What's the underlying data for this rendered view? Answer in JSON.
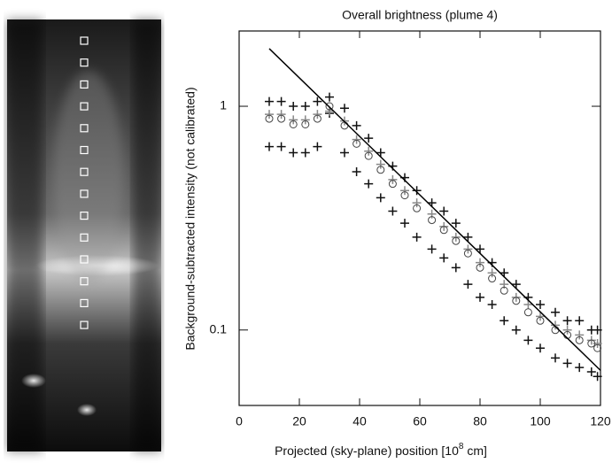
{
  "chart_data": {
    "type": "scatter",
    "title": "Overall brightness (plume 4)",
    "xlabel": [
      "Projected (sky-plane) position [10",
      "8",
      " cm]"
    ],
    "ylabel": "Background-subtracted intensity (not calibrated)",
    "xlim": [
      0,
      120
    ],
    "xticks": [
      0,
      20,
      40,
      60,
      80,
      100,
      120
    ],
    "ylim": [
      0.046,
      2.17
    ],
    "yscale": "log",
    "yticks": [
      1,
      0.1
    ],
    "x": [
      10,
      14,
      18,
      22,
      26,
      30,
      35,
      39,
      43,
      47,
      51,
      55,
      59,
      64,
      68,
      72,
      76,
      80,
      84,
      88,
      92,
      96,
      100,
      105,
      109,
      113,
      117,
      119
    ],
    "series": [
      {
        "color": "#111111",
        "marker": "plus",
        "values": [
          1.05,
          1.05,
          1.0,
          1.0,
          1.05,
          1.1,
          0.98,
          0.82,
          0.72,
          0.62,
          0.54,
          0.48,
          0.42,
          0.37,
          0.34,
          0.3,
          0.26,
          0.23,
          0.2,
          0.18,
          0.16,
          0.14,
          0.13,
          0.12,
          0.11,
          0.11,
          0.1,
          0.1
        ]
      },
      {
        "color": "#111111",
        "marker": "plus",
        "values": [
          0.66,
          0.66,
          0.62,
          0.62,
          0.66,
          0.93,
          0.62,
          0.51,
          0.45,
          0.39,
          0.34,
          0.3,
          0.26,
          0.23,
          0.21,
          0.19,
          0.16,
          0.14,
          0.13,
          0.11,
          0.1,
          0.09,
          0.083,
          0.075,
          0.071,
          0.068,
          0.065,
          0.062
        ]
      },
      {
        "color": "#888888",
        "marker": "plus",
        "values": [
          0.92,
          0.92,
          0.87,
          0.87,
          0.92,
          0.95,
          0.86,
          0.71,
          0.63,
          0.55,
          0.47,
          0.42,
          0.37,
          0.33,
          0.29,
          0.26,
          0.23,
          0.2,
          0.18,
          0.16,
          0.14,
          0.13,
          0.115,
          0.105,
          0.1,
          0.095,
          0.09,
          0.087
        ]
      },
      {
        "color": "#444444",
        "marker": "circle",
        "values": [
          0.88,
          0.88,
          0.83,
          0.83,
          0.88,
          1.0,
          0.82,
          0.68,
          0.6,
          0.52,
          0.45,
          0.4,
          0.35,
          0.31,
          0.28,
          0.25,
          0.22,
          0.19,
          0.17,
          0.15,
          0.135,
          0.12,
          0.11,
          0.1,
          0.095,
          0.09,
          0.087,
          0.083
        ]
      }
    ],
    "fit": {
      "color": "#000000",
      "x": [
        10,
        120
      ],
      "values": [
        1.81,
        0.066
      ]
    }
  }
}
